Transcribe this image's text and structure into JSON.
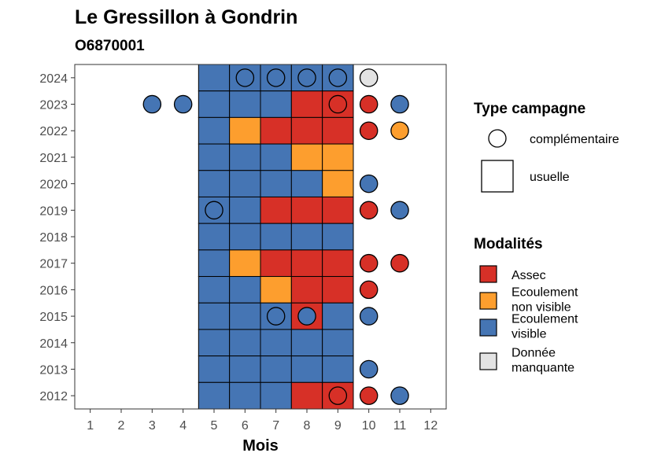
{
  "chart_data": {
    "type": "heatmap",
    "title": "Le Gressillon à Gondrin",
    "subtitle": "O6870001",
    "xlabel": "Mois",
    "ylabel": "",
    "x_ticks": [
      "1",
      "2",
      "3",
      "4",
      "5",
      "6",
      "7",
      "8",
      "9",
      "10",
      "11",
      "12"
    ],
    "y_ticks": [
      "2012",
      "2013",
      "2014",
      "2015",
      "2016",
      "2017",
      "2018",
      "2019",
      "2020",
      "2021",
      "2022",
      "2023",
      "2024"
    ],
    "xlim": [
      0.5,
      12.5
    ],
    "ylim": [
      2011.5,
      2024.5
    ],
    "grid": false,
    "colors": {
      "Assec": "#d73027",
      "Ecoulement non visible": "#fd9e2e",
      "Ecoulement visible": "#4575b4",
      "Donnée manquante": "#e3e3e3",
      "outline": "#000000"
    },
    "usuelle": [
      {
        "year": 2024,
        "values": {
          "5": "Ecoulement visible",
          "6": "Ecoulement visible",
          "7": "Ecoulement visible",
          "8": "Ecoulement visible",
          "9": "Ecoulement visible"
        }
      },
      {
        "year": 2023,
        "values": {
          "5": "Ecoulement visible",
          "6": "Ecoulement visible",
          "7": "Ecoulement visible",
          "8": "Assec",
          "9": "Assec"
        }
      },
      {
        "year": 2022,
        "values": {
          "5": "Ecoulement visible",
          "6": "Ecoulement non visible",
          "7": "Assec",
          "8": "Assec",
          "9": "Assec"
        }
      },
      {
        "year": 2021,
        "values": {
          "5": "Ecoulement visible",
          "6": "Ecoulement visible",
          "7": "Ecoulement visible",
          "8": "Ecoulement non visible",
          "9": "Ecoulement non visible"
        }
      },
      {
        "year": 2020,
        "values": {
          "5": "Ecoulement visible",
          "6": "Ecoulement visible",
          "7": "Ecoulement visible",
          "8": "Ecoulement visible",
          "9": "Ecoulement non visible"
        }
      },
      {
        "year": 2019,
        "values": {
          "5": "Ecoulement visible",
          "6": "Ecoulement visible",
          "7": "Assec",
          "8": "Assec",
          "9": "Assec"
        }
      },
      {
        "year": 2018,
        "values": {
          "5": "Ecoulement visible",
          "6": "Ecoulement visible",
          "7": "Ecoulement visible",
          "8": "Ecoulement visible",
          "9": "Ecoulement visible"
        }
      },
      {
        "year": 2017,
        "values": {
          "5": "Ecoulement visible",
          "6": "Ecoulement non visible",
          "7": "Assec",
          "8": "Assec",
          "9": "Assec"
        }
      },
      {
        "year": 2016,
        "values": {
          "5": "Ecoulement visible",
          "6": "Ecoulement visible",
          "7": "Ecoulement non visible",
          "8": "Assec",
          "9": "Assec"
        }
      },
      {
        "year": 2015,
        "values": {
          "5": "Ecoulement visible",
          "6": "Ecoulement visible",
          "7": "Ecoulement visible",
          "8": "Assec",
          "9": "Ecoulement visible"
        }
      },
      {
        "year": 2014,
        "values": {
          "5": "Ecoulement visible",
          "6": "Ecoulement visible",
          "7": "Ecoulement visible",
          "8": "Ecoulement visible",
          "9": "Ecoulement visible"
        }
      },
      {
        "year": 2013,
        "values": {
          "5": "Ecoulement visible",
          "6": "Ecoulement visible",
          "7": "Ecoulement visible",
          "8": "Ecoulement visible",
          "9": "Ecoulement visible"
        }
      },
      {
        "year": 2012,
        "values": {
          "5": "Ecoulement visible",
          "6": "Ecoulement visible",
          "7": "Ecoulement visible",
          "8": "Assec",
          "9": "Assec"
        }
      }
    ],
    "complementaire": [
      {
        "year": 2024,
        "month": 6,
        "modalite": "Ecoulement visible"
      },
      {
        "year": 2024,
        "month": 7,
        "modalite": "Ecoulement visible"
      },
      {
        "year": 2024,
        "month": 8,
        "modalite": "Ecoulement visible"
      },
      {
        "year": 2024,
        "month": 9,
        "modalite": "Ecoulement visible"
      },
      {
        "year": 2024,
        "month": 10,
        "modalite": "Donnée manquante"
      },
      {
        "year": 2023,
        "month": 3,
        "modalite": "Ecoulement visible"
      },
      {
        "year": 2023,
        "month": 4,
        "modalite": "Ecoulement visible"
      },
      {
        "year": 2023,
        "month": 9,
        "modalite": "Assec"
      },
      {
        "year": 2023,
        "month": 10,
        "modalite": "Assec"
      },
      {
        "year": 2023,
        "month": 11,
        "modalite": "Ecoulement visible"
      },
      {
        "year": 2022,
        "month": 10,
        "modalite": "Assec"
      },
      {
        "year": 2022,
        "month": 11,
        "modalite": "Ecoulement non visible"
      },
      {
        "year": 2020,
        "month": 10,
        "modalite": "Ecoulement visible"
      },
      {
        "year": 2019,
        "month": 5,
        "modalite": "Ecoulement visible"
      },
      {
        "year": 2019,
        "month": 10,
        "modalite": "Assec"
      },
      {
        "year": 2019,
        "month": 11,
        "modalite": "Ecoulement visible"
      },
      {
        "year": 2017,
        "month": 10,
        "modalite": "Assec"
      },
      {
        "year": 2017,
        "month": 11,
        "modalite": "Assec"
      },
      {
        "year": 2016,
        "month": 10,
        "modalite": "Assec"
      },
      {
        "year": 2015,
        "month": 7,
        "modalite": "Ecoulement visible"
      },
      {
        "year": 2015,
        "month": 8,
        "modalite": "Ecoulement visible"
      },
      {
        "year": 2015,
        "month": 10,
        "modalite": "Ecoulement visible"
      },
      {
        "year": 2013,
        "month": 10,
        "modalite": "Ecoulement visible"
      },
      {
        "year": 2012,
        "month": 9,
        "modalite": "Assec"
      },
      {
        "year": 2012,
        "month": 10,
        "modalite": "Assec"
      },
      {
        "year": 2012,
        "month": 11,
        "modalite": "Ecoulement visible"
      }
    ],
    "legend_type": {
      "title": "Type campagne",
      "items": [
        {
          "label": "complémentaire",
          "shape": "circle"
        },
        {
          "label": "usuelle",
          "shape": "square"
        }
      ]
    },
    "legend_modalites": {
      "title": "Modalités",
      "items": [
        {
          "label_lines": [
            "Assec"
          ],
          "key": "Assec"
        },
        {
          "label_lines": [
            "Ecoulement",
            "non visible"
          ],
          "key": "Ecoulement non visible"
        },
        {
          "label_lines": [
            "Ecoulement",
            "visible"
          ],
          "key": "Ecoulement visible"
        },
        {
          "label_lines": [
            "Donnée",
            "manquante"
          ],
          "key": "Donnée manquante"
        }
      ]
    },
    "legend_position": "right"
  }
}
